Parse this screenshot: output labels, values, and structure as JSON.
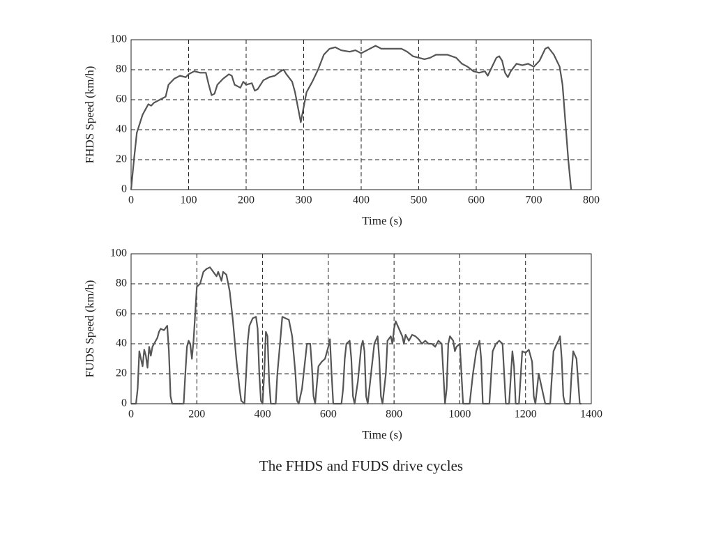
{
  "caption": "The FHDS and FUDS drive cycles",
  "chart_data": [
    {
      "type": "line",
      "x_label": "Time (s)",
      "y_label": "FHDS Speed (km/h)",
      "xlim": [
        0,
        800
      ],
      "xticks": [
        0,
        100,
        200,
        300,
        400,
        500,
        600,
        700,
        800
      ],
      "ylim": [
        0,
        100
      ],
      "yticks": [
        0,
        20,
        40,
        60,
        80,
        100
      ],
      "grid": true,
      "color": "#555555",
      "x": [
        0,
        5,
        10,
        20,
        30,
        35,
        40,
        50,
        60,
        65,
        75,
        85,
        95,
        100,
        110,
        120,
        130,
        135,
        140,
        145,
        150,
        160,
        170,
        175,
        180,
        190,
        195,
        200,
        210,
        215,
        220,
        230,
        240,
        250,
        260,
        265,
        270,
        280,
        285,
        290,
        295,
        300,
        305,
        315,
        325,
        335,
        345,
        355,
        365,
        380,
        390,
        400,
        410,
        420,
        425,
        435,
        450,
        470,
        480,
        490,
        500,
        510,
        520,
        530,
        550,
        565,
        575,
        585,
        595,
        605,
        615,
        620,
        625,
        635,
        640,
        645,
        650,
        655,
        660,
        670,
        680,
        690,
        700,
        710,
        720,
        725,
        735,
        745,
        750,
        755,
        760,
        765
      ],
      "y": [
        0,
        20,
        38,
        50,
        57,
        56,
        58,
        60,
        62,
        70,
        74,
        76,
        75,
        77,
        79,
        78,
        78,
        70,
        63,
        64,
        70,
        74,
        77,
        76,
        70,
        68,
        72,
        70,
        71,
        66,
        67,
        73,
        75,
        76,
        79,
        80,
        77,
        72,
        65,
        55,
        45,
        55,
        65,
        72,
        80,
        90,
        94,
        95,
        93,
        92,
        93,
        91,
        93,
        95,
        96,
        94,
        94,
        94,
        92,
        89,
        88,
        87,
        88,
        90,
        90,
        88,
        84,
        82,
        79,
        78,
        79,
        76,
        80,
        88,
        89,
        86,
        78,
        75,
        79,
        84,
        83,
        84,
        82,
        86,
        94,
        95,
        90,
        82,
        70,
        45,
        20,
        0
      ]
    },
    {
      "type": "line",
      "x_label": "Time (s)",
      "y_label": "FUDS Speed (km/h)",
      "xlim": [
        0,
        1400
      ],
      "xticks": [
        0,
        200,
        400,
        600,
        800,
        1000,
        1200,
        1400
      ],
      "ylim": [
        0,
        100
      ],
      "yticks": [
        0,
        20,
        40,
        60,
        80,
        100
      ],
      "grid": true,
      "color": "#555555",
      "x": [
        0,
        15,
        20,
        25,
        30,
        35,
        40,
        45,
        50,
        55,
        60,
        65,
        70,
        80,
        85,
        90,
        100,
        110,
        115,
        120,
        125,
        160,
        165,
        170,
        175,
        180,
        185,
        190,
        195,
        200,
        210,
        220,
        230,
        240,
        250,
        260,
        265,
        275,
        280,
        290,
        300,
        310,
        320,
        330,
        335,
        345,
        350,
        355,
        360,
        370,
        380,
        385,
        390,
        395,
        400,
        405,
        410,
        415,
        420,
        425,
        440,
        445,
        455,
        460,
        470,
        480,
        490,
        500,
        505,
        510,
        520,
        530,
        535,
        545,
        550,
        555,
        560,
        570,
        580,
        590,
        600,
        605,
        610,
        615,
        640,
        645,
        650,
        655,
        665,
        670,
        675,
        680,
        690,
        700,
        705,
        710,
        715,
        720,
        730,
        740,
        750,
        755,
        760,
        765,
        775,
        780,
        790,
        795,
        800,
        805,
        815,
        825,
        830,
        835,
        845,
        855,
        865,
        875,
        885,
        895,
        905,
        915,
        925,
        935,
        945,
        950,
        955,
        960,
        965,
        970,
        980,
        985,
        990,
        1000,
        1005,
        1010,
        1030,
        1040,
        1050,
        1060,
        1065,
        1070,
        1090,
        1100,
        1110,
        1120,
        1130,
        1135,
        1140,
        1150,
        1160,
        1165,
        1170,
        1180,
        1190,
        1200,
        1210,
        1220,
        1225,
        1230,
        1240,
        1250,
        1260,
        1275,
        1285,
        1295,
        1300,
        1305,
        1310,
        1315,
        1320,
        1335,
        1340,
        1345,
        1355,
        1360,
        1365,
        1370
      ],
      "y": [
        0,
        0,
        10,
        35,
        30,
        25,
        36,
        32,
        24,
        38,
        32,
        38,
        40,
        44,
        48,
        50,
        49,
        52,
        35,
        5,
        0,
        0,
        20,
        38,
        42,
        40,
        30,
        42,
        60,
        78,
        80,
        88,
        90,
        91,
        88,
        85,
        88,
        82,
        88,
        86,
        75,
        55,
        30,
        10,
        2,
        0,
        20,
        42,
        52,
        57,
        58,
        50,
        20,
        2,
        0,
        20,
        48,
        45,
        15,
        0,
        0,
        20,
        45,
        58,
        57,
        56,
        45,
        20,
        2,
        0,
        10,
        30,
        40,
        40,
        25,
        5,
        0,
        25,
        28,
        30,
        38,
        43,
        20,
        0,
        0,
        10,
        30,
        40,
        42,
        30,
        5,
        0,
        15,
        38,
        42,
        35,
        5,
        0,
        20,
        40,
        45,
        30,
        5,
        0,
        20,
        42,
        45,
        40,
        50,
        55,
        50,
        45,
        40,
        46,
        42,
        46,
        45,
        43,
        40,
        42,
        40,
        40,
        38,
        42,
        40,
        20,
        0,
        10,
        40,
        45,
        42,
        35,
        38,
        40,
        20,
        0,
        0,
        20,
        35,
        42,
        30,
        0,
        0,
        35,
        40,
        42,
        40,
        20,
        0,
        0,
        35,
        25,
        0,
        0,
        35,
        34,
        36,
        28,
        5,
        0,
        20,
        10,
        0,
        0,
        35,
        40,
        42,
        45,
        30,
        5,
        0,
        0,
        20,
        35,
        30,
        15,
        0,
        0
      ]
    }
  ]
}
